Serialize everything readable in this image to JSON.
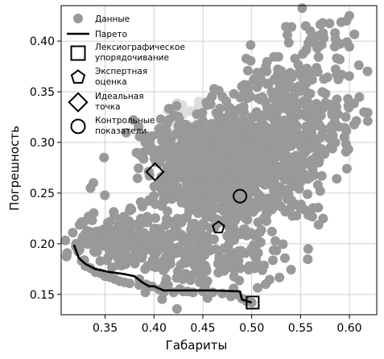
{
  "chart_data": {
    "type": "scatter",
    "xlabel": "Габариты",
    "ylabel": "Погрешность",
    "xlim": [
      0.305,
      0.628
    ],
    "ylim": [
      0.13,
      0.435
    ],
    "xticks": [
      "0.35",
      "0.40",
      "0.45",
      "0.50",
      "0.55",
      "0.60"
    ],
    "yticks": [
      "0.15",
      "0.20",
      "0.25",
      "0.30",
      "0.35",
      "0.40"
    ],
    "grid": true,
    "legend_placement": "top-left",
    "colors": {
      "data": "#999999",
      "data_light": "#dddddd",
      "pareto": "#000000",
      "marker": "#000000"
    },
    "series": [
      {
        "name": "Данные",
        "kind": "scatter",
        "clusters": [
          {
            "center": [
              0.47,
              0.27
            ],
            "spread": [
              0.03,
              0.032
            ],
            "count": 650
          },
          {
            "center": [
              0.53,
              0.3
            ],
            "spread": [
              0.03,
              0.04
            ],
            "count": 360
          },
          {
            "center": [
              0.57,
              0.36
            ],
            "spread": [
              0.03,
              0.035
            ],
            "count": 120
          },
          {
            "center": [
              0.43,
              0.29
            ],
            "spread": [
              0.025,
              0.02
            ],
            "count": 130
          },
          {
            "center": [
              0.37,
              0.205
            ],
            "spread": [
              0.03,
              0.012
            ],
            "count": 240
          },
          {
            "center": [
              0.455,
              0.185
            ],
            "spread": [
              0.04,
              0.015
            ],
            "count": 160
          }
        ],
        "light_cluster": {
          "center": [
            0.43,
            0.31
          ],
          "spread": [
            0.012,
            0.02
          ],
          "count": 45
        },
        "outliers": [
          [
            0.6,
            0.425
          ],
          [
            0.597,
            0.42
          ],
          [
            0.573,
            0.408
          ],
          [
            0.615,
            0.33
          ],
          [
            0.56,
            0.41
          ],
          [
            0.556,
            0.392
          ],
          [
            0.335,
            0.255
          ],
          [
            0.338,
            0.26
          ]
        ],
        "front_points": [
          [
            0.32,
            0.197
          ],
          [
            0.326,
            0.183
          ],
          [
            0.33,
            0.178
          ],
          [
            0.335,
            0.176
          ],
          [
            0.34,
            0.172
          ],
          [
            0.345,
            0.171
          ],
          [
            0.35,
            0.168
          ],
          [
            0.355,
            0.167
          ],
          [
            0.36,
            0.165
          ],
          [
            0.365,
            0.163
          ],
          [
            0.37,
            0.162
          ],
          [
            0.375,
            0.161
          ],
          [
            0.385,
            0.165
          ],
          [
            0.392,
            0.16
          ],
          [
            0.398,
            0.158
          ],
          [
            0.405,
            0.155
          ],
          [
            0.41,
            0.152
          ],
          [
            0.42,
            0.152
          ],
          [
            0.43,
            0.153
          ],
          [
            0.44,
            0.152
          ],
          [
            0.45,
            0.153
          ],
          [
            0.46,
            0.152
          ],
          [
            0.47,
            0.151
          ],
          [
            0.48,
            0.152
          ],
          [
            0.485,
            0.15
          ],
          [
            0.49,
            0.146
          ],
          [
            0.495,
            0.143
          ],
          [
            0.5,
            0.142
          ]
        ]
      },
      {
        "name": "Парето",
        "kind": "line",
        "points": [
          [
            0.318,
            0.199
          ],
          [
            0.323,
            0.186
          ],
          [
            0.33,
            0.18
          ],
          [
            0.34,
            0.175
          ],
          [
            0.355,
            0.172
          ],
          [
            0.37,
            0.17
          ],
          [
            0.38,
            0.168
          ],
          [
            0.388,
            0.162
          ],
          [
            0.395,
            0.158
          ],
          [
            0.4,
            0.158
          ],
          [
            0.41,
            0.154
          ],
          [
            0.43,
            0.154
          ],
          [
            0.46,
            0.154
          ],
          [
            0.488,
            0.153
          ],
          [
            0.49,
            0.145
          ],
          [
            0.5,
            0.142
          ]
        ]
      }
    ],
    "markers": [
      {
        "name": "Лексиографическое упорядочивание",
        "shape": "square",
        "x": 0.501,
        "y": 0.142
      },
      {
        "name": "Экспертная оценка",
        "shape": "pentagon",
        "x": 0.466,
        "y": 0.216
      },
      {
        "name": "Идеальная точка",
        "shape": "diamond",
        "x": 0.401,
        "y": 0.271
      },
      {
        "name": "Контрольные показатели",
        "shape": "circle",
        "x": 0.488,
        "y": 0.247
      }
    ],
    "legend": [
      {
        "symbol": "dot",
        "lines": [
          "Данные"
        ]
      },
      {
        "symbol": "line",
        "lines": [
          "Парето"
        ]
      },
      {
        "symbol": "square",
        "lines": [
          "Лексиографическое",
          "упорядочивание"
        ]
      },
      {
        "symbol": "pentagon",
        "lines": [
          "Экспертная",
          "оценка"
        ]
      },
      {
        "symbol": "diamond",
        "lines": [
          "Идеальная",
          "точка"
        ]
      },
      {
        "symbol": "circle",
        "lines": [
          "Контрольные",
          "показатели"
        ]
      }
    ]
  }
}
